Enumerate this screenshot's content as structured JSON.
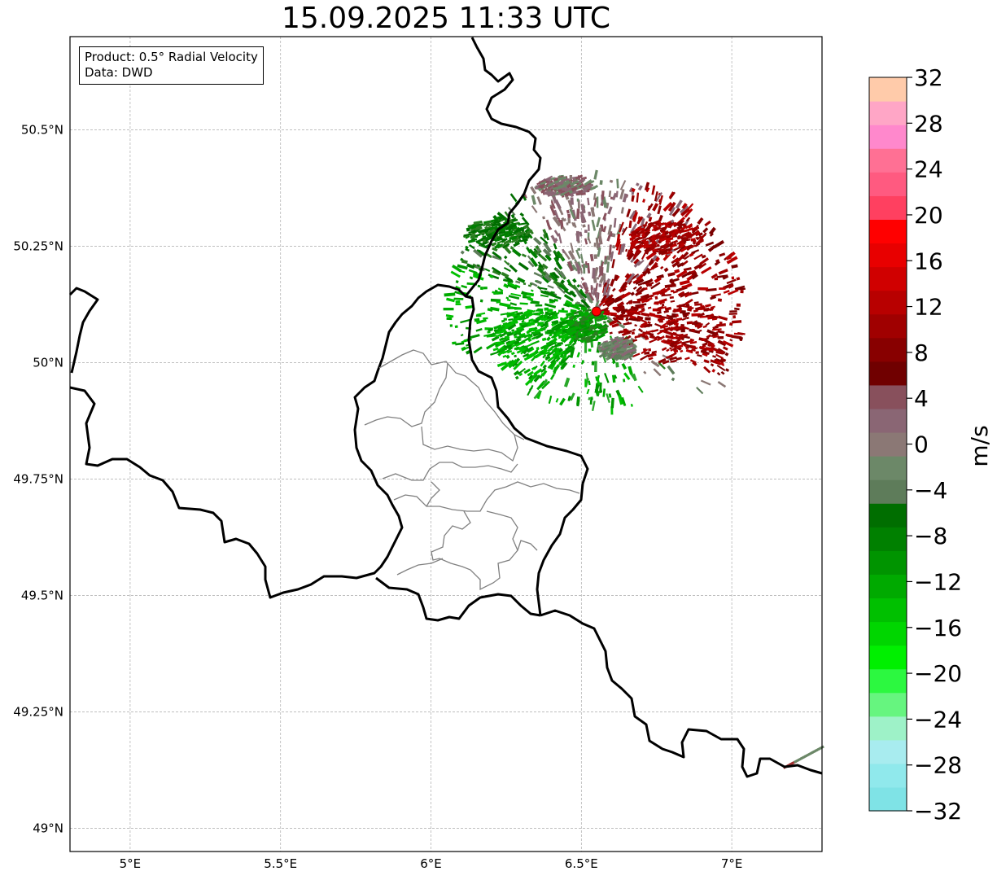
{
  "title": "15.09.2025 11:33 UTC",
  "info": {
    "product": "Product: 0.5° Radial Velocity",
    "data": "Data: DWD"
  },
  "map": {
    "lon_range": [
      4.8,
      7.3
    ],
    "lat_range": [
      48.95,
      50.7
    ],
    "x_ticks": [
      {
        "value": 5.0,
        "label": "5°E"
      },
      {
        "value": 5.5,
        "label": "5.5°E"
      },
      {
        "value": 6.0,
        "label": "6°E"
      },
      {
        "value": 6.5,
        "label": "6.5°E"
      },
      {
        "value": 7.0,
        "label": "7°E"
      }
    ],
    "y_ticks": [
      {
        "value": 50.5,
        "label": "50.5°N"
      },
      {
        "value": 50.25,
        "label": "50.25°N"
      },
      {
        "value": 50.0,
        "label": "50°N"
      },
      {
        "value": 49.75,
        "label": "49.75°N"
      },
      {
        "value": 49.5,
        "label": "49.5°N"
      },
      {
        "value": 49.25,
        "label": "49.25°N"
      },
      {
        "value": 49.0,
        "label": "49°N"
      }
    ],
    "gridlines": true,
    "radar_site": {
      "lon": 6.55,
      "lat": 50.11,
      "color": "#ff0000"
    }
  },
  "colorbar": {
    "label": "m/s",
    "vmin": -32,
    "vmax": 32,
    "ticks": [
      "32",
      "28",
      "24",
      "20",
      "16",
      "12",
      "8",
      "4",
      "0",
      "−4",
      "−8",
      "−12",
      "−16",
      "−20",
      "−24",
      "−28",
      "−32"
    ],
    "colors": [
      "#7fe3e6",
      "#90e9ec",
      "#a8ecef",
      "#9ef2c8",
      "#66f57f",
      "#2cf840",
      "#00f000",
      "#00d600",
      "#00c000",
      "#00aa00",
      "#009400",
      "#008000",
      "#006e00",
      "#5e7c5a",
      "#6c8868",
      "#8b7875",
      "#8a6674",
      "#88505c",
      "#700000",
      "#880000",
      "#a00000",
      "#b80000",
      "#d00000",
      "#e80000",
      "#ff0000",
      "#ff4060",
      "#ff5a80",
      "#ff7094",
      "#ff88cc",
      "#ffa6c6",
      "#ffcbaa"
    ]
  },
  "echo_regions": [
    {
      "name": "inbound-west",
      "velocity": -12,
      "center": [
        6.35,
        50.1
      ]
    },
    {
      "name": "inbound-north",
      "velocity": -8,
      "center": [
        6.2,
        50.3
      ]
    },
    {
      "name": "outbound-east",
      "velocity": 12,
      "center": [
        6.8,
        50.07
      ]
    },
    {
      "name": "outbound-northeast",
      "velocity": 12,
      "center": [
        6.75,
        50.28
      ]
    },
    {
      "name": "near-zero-north",
      "velocity": 2,
      "center": [
        6.5,
        50.38
      ]
    }
  ]
}
